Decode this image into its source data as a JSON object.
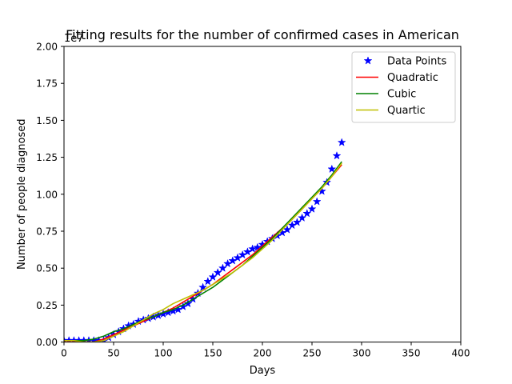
{
  "chart_data": {
    "type": "line",
    "title": "Fitting results for the number of confirmed cases in American",
    "xlabel": "Days",
    "ylabel": "Number of people diagnosed",
    "y_offset_label": "1e7",
    "xlim": [
      0,
      400
    ],
    "ylim": [
      0,
      2.0
    ],
    "y_scale_factor": 10000000,
    "x_ticks": [
      0,
      50,
      100,
      150,
      200,
      250,
      300,
      350,
      400
    ],
    "x_tick_labels": [
      "0",
      "50",
      "100",
      "150",
      "200",
      "250",
      "300",
      "350",
      "400"
    ],
    "y_ticks": [
      0,
      0.25,
      0.5,
      0.75,
      1.0,
      1.25,
      1.5,
      1.75,
      2.0
    ],
    "y_tick_labels": [
      "0.00",
      "0.25",
      "0.50",
      "0.75",
      "1.00",
      "1.25",
      "1.50",
      "1.75",
      "2.00"
    ],
    "grid": false,
    "legend_position": "top-right",
    "series": [
      {
        "name": "Data Points",
        "kind": "markers",
        "marker": "star",
        "color": "#0000ff",
        "x": [
          0,
          5,
          10,
          15,
          20,
          25,
          30,
          35,
          40,
          45,
          50,
          55,
          60,
          65,
          70,
          75,
          80,
          85,
          90,
          95,
          100,
          105,
          110,
          115,
          120,
          125,
          130,
          135,
          140,
          145,
          150,
          155,
          160,
          165,
          170,
          175,
          180,
          185,
          190,
          195,
          200,
          205,
          210,
          215,
          220,
          225,
          230,
          235,
          240,
          245,
          250,
          255,
          260,
          265,
          270,
          275,
          280
        ],
        "y": [
          0.01,
          0.01,
          0.01,
          0.01,
          0.01,
          0.01,
          0.01,
          0.01,
          0.01,
          0.03,
          0.05,
          0.07,
          0.09,
          0.11,
          0.12,
          0.14,
          0.15,
          0.16,
          0.17,
          0.18,
          0.19,
          0.2,
          0.21,
          0.22,
          0.24,
          0.26,
          0.29,
          0.33,
          0.37,
          0.41,
          0.44,
          0.47,
          0.5,
          0.53,
          0.55,
          0.57,
          0.59,
          0.61,
          0.63,
          0.64,
          0.66,
          0.68,
          0.7,
          0.72,
          0.74,
          0.76,
          0.79,
          0.81,
          0.84,
          0.87,
          0.9,
          0.95,
          1.02,
          1.08,
          1.17,
          1.26,
          1.35
        ]
      },
      {
        "name": "Quadratic",
        "kind": "line",
        "color": "#ff0000",
        "x": [
          0,
          10,
          20,
          30,
          40,
          50,
          60,
          70,
          80,
          90,
          100,
          110,
          120,
          130,
          140,
          150,
          160,
          170,
          180,
          190,
          200,
          210,
          220,
          230,
          240,
          250,
          260,
          270,
          280
        ],
        "y": [
          0.0,
          0.0,
          0.0,
          0.0,
          0.02,
          0.05,
          0.08,
          0.11,
          0.14,
          0.17,
          0.2,
          0.23,
          0.27,
          0.31,
          0.35,
          0.39,
          0.44,
          0.49,
          0.54,
          0.59,
          0.65,
          0.71,
          0.77,
          0.83,
          0.9,
          0.97,
          1.04,
          1.12,
          1.2
        ]
      },
      {
        "name": "Cubic",
        "kind": "line",
        "color": "#008000",
        "x": [
          0,
          10,
          20,
          30,
          40,
          50,
          60,
          70,
          80,
          90,
          100,
          110,
          120,
          130,
          140,
          150,
          160,
          170,
          180,
          190,
          200,
          210,
          220,
          230,
          240,
          250,
          260,
          270,
          280
        ],
        "y": [
          0.01,
          0.01,
          0.01,
          0.02,
          0.04,
          0.07,
          0.09,
          0.12,
          0.15,
          0.17,
          0.2,
          0.22,
          0.25,
          0.29,
          0.33,
          0.37,
          0.42,
          0.47,
          0.52,
          0.58,
          0.64,
          0.7,
          0.77,
          0.84,
          0.91,
          0.98,
          1.05,
          1.13,
          1.22
        ]
      },
      {
        "name": "Quartic",
        "kind": "line",
        "color": "#bfbf00",
        "x": [
          0,
          10,
          20,
          30,
          40,
          50,
          60,
          70,
          80,
          90,
          100,
          110,
          120,
          130,
          140,
          150,
          160,
          170,
          180,
          190,
          200,
          210,
          220,
          230,
          240,
          250,
          260,
          270,
          280
        ],
        "y": [
          0.01,
          0.01,
          0.0,
          0.0,
          0.01,
          0.04,
          0.07,
          0.11,
          0.15,
          0.19,
          0.22,
          0.26,
          0.29,
          0.32,
          0.35,
          0.39,
          0.43,
          0.47,
          0.52,
          0.57,
          0.63,
          0.69,
          0.76,
          0.83,
          0.9,
          0.97,
          1.04,
          1.12,
          1.21
        ]
      }
    ]
  }
}
